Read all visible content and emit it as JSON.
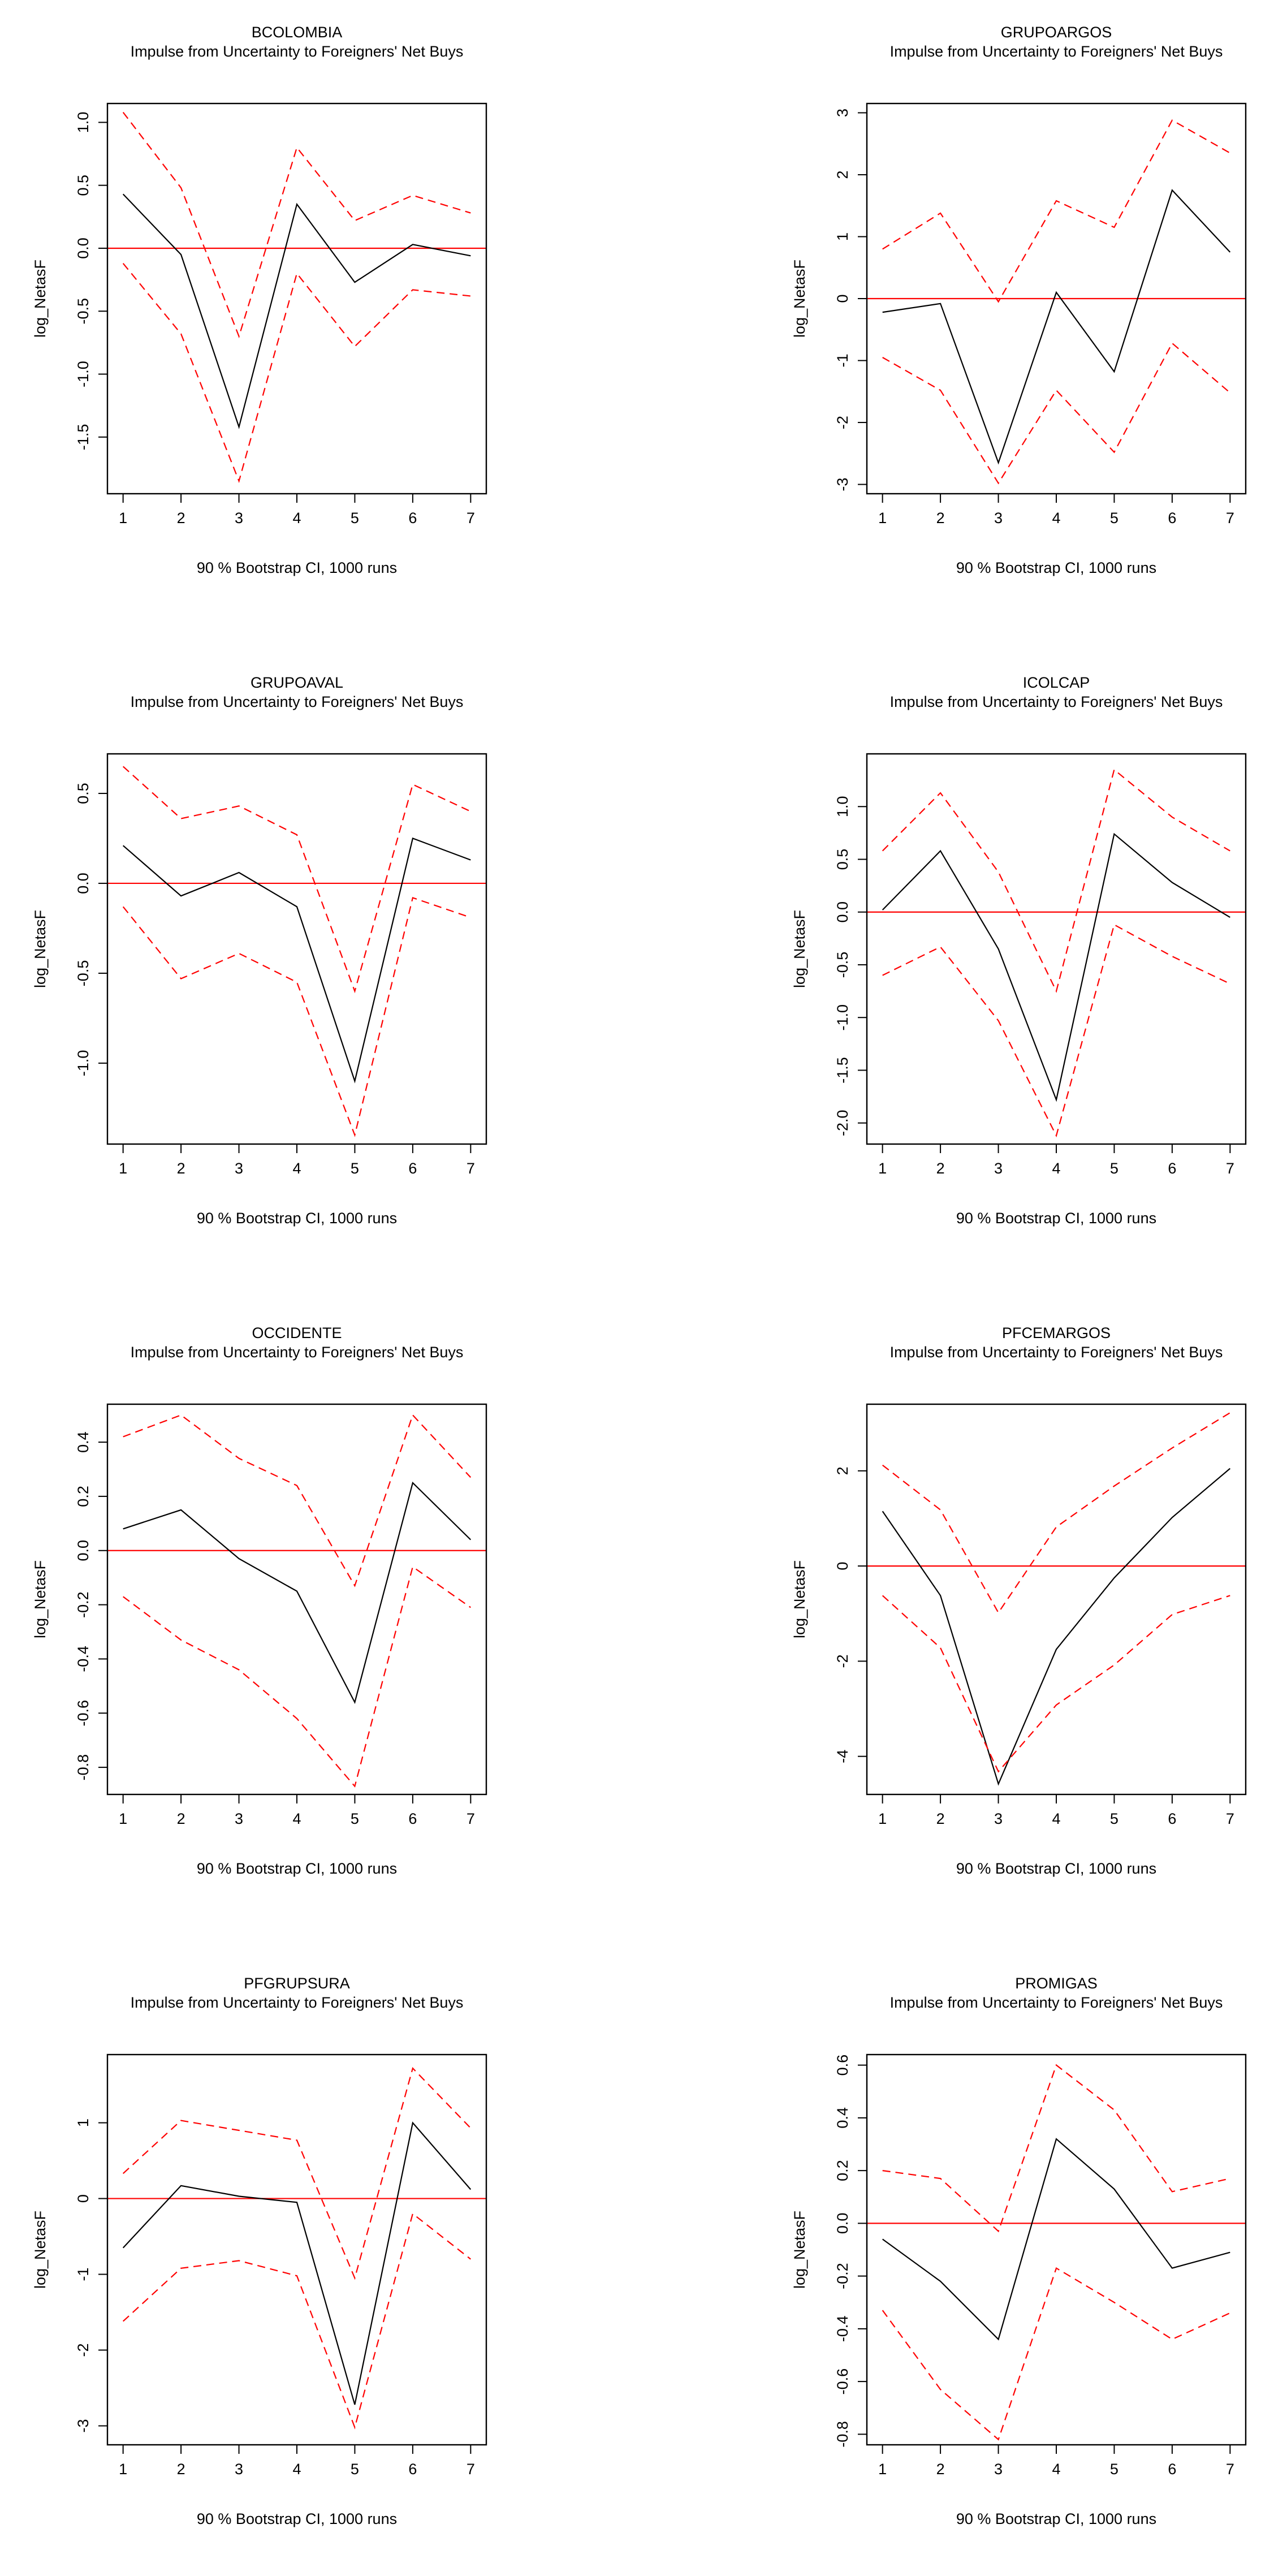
{
  "chart_data": [
    {
      "type": "line",
      "title": "BCOLOMBIA",
      "subtitle": "Impulse from Uncertainty to Foreigners' Net Buys",
      "xlabel": "90 % Bootstrap CI,  1000 runs",
      "ylabel": "log_NetasF",
      "x": [
        1,
        2,
        3,
        4,
        5,
        6,
        7
      ],
      "xticks": [
        "1",
        "2",
        "3",
        "4",
        "5",
        "6",
        "7"
      ],
      "ylim": [
        -1.95,
        1.15
      ],
      "yticks": [
        -1.5,
        -1.0,
        -0.5,
        0.0,
        0.5,
        1.0
      ],
      "yticklabels": [
        "-1.5",
        "-1.0",
        "-0.5",
        "0.0",
        "0.5",
        "1.0"
      ],
      "series": [
        {
          "name": "irf",
          "values": [
            0.43,
            -0.05,
            -1.42,
            0.35,
            -0.27,
            0.03,
            -0.06
          ]
        },
        {
          "name": "upper",
          "values": [
            1.08,
            0.48,
            -0.7,
            0.8,
            0.22,
            0.42,
            0.28
          ]
        },
        {
          "name": "lower",
          "values": [
            -0.12,
            -0.68,
            -1.85,
            -0.2,
            -0.78,
            -0.33,
            -0.38
          ]
        }
      ]
    },
    {
      "type": "line",
      "title": "GRUPOARGOS",
      "subtitle": "Impulse from Uncertainty to Foreigners' Net Buys",
      "xlabel": "90 % Bootstrap CI,  1000 runs",
      "ylabel": "log_NetasF",
      "x": [
        1,
        2,
        3,
        4,
        5,
        6,
        7
      ],
      "xticks": [
        "1",
        "2",
        "3",
        "4",
        "5",
        "6",
        "7"
      ],
      "ylim": [
        -3.15,
        3.15
      ],
      "yticks": [
        -3,
        -2,
        -1,
        0,
        1,
        2,
        3
      ],
      "yticklabels": [
        "-3",
        "-2",
        "-1",
        "0",
        "1",
        "2",
        "3"
      ],
      "series": [
        {
          "name": "irf",
          "values": [
            -0.22,
            -0.08,
            -2.65,
            0.1,
            -1.18,
            1.75,
            0.75
          ]
        },
        {
          "name": "upper",
          "values": [
            0.8,
            1.38,
            -0.05,
            1.58,
            1.15,
            2.88,
            2.35
          ]
        },
        {
          "name": "lower",
          "values": [
            -0.95,
            -1.48,
            -2.98,
            -1.48,
            -2.48,
            -0.72,
            -1.52
          ]
        }
      ]
    },
    {
      "type": "line",
      "title": "GRUPOAVAL",
      "subtitle": "Impulse from Uncertainty to Foreigners' Net Buys",
      "xlabel": "90 % Bootstrap CI,  1000 runs",
      "ylabel": "log_NetasF",
      "x": [
        1,
        2,
        3,
        4,
        5,
        6,
        7
      ],
      "xticks": [
        "1",
        "2",
        "3",
        "4",
        "5",
        "6",
        "7"
      ],
      "ylim": [
        -1.45,
        0.72
      ],
      "yticks": [
        -1.0,
        -0.5,
        0.0,
        0.5
      ],
      "yticklabels": [
        "-1.0",
        "-0.5",
        "0.0",
        "0.5"
      ],
      "series": [
        {
          "name": "irf",
          "values": [
            0.21,
            -0.07,
            0.06,
            -0.13,
            -1.1,
            0.25,
            0.13
          ]
        },
        {
          "name": "upper",
          "values": [
            0.65,
            0.36,
            0.43,
            0.27,
            -0.6,
            0.55,
            0.4
          ]
        },
        {
          "name": "lower",
          "values": [
            -0.13,
            -0.53,
            -0.39,
            -0.55,
            -1.4,
            -0.08,
            -0.19
          ]
        }
      ]
    },
    {
      "type": "line",
      "title": "ICOLCAP",
      "subtitle": "Impulse from Uncertainty to Foreigners' Net Buys",
      "xlabel": "90 % Bootstrap CI,  1000 runs",
      "ylabel": "log_NetasF",
      "x": [
        1,
        2,
        3,
        4,
        5,
        6,
        7
      ],
      "xticks": [
        "1",
        "2",
        "3",
        "4",
        "5",
        "6",
        "7"
      ],
      "ylim": [
        -2.2,
        1.5
      ],
      "yticks": [
        -2.0,
        -1.5,
        -1.0,
        -0.5,
        0.0,
        0.5,
        1.0
      ],
      "yticklabels": [
        "-2.0",
        "-1.5",
        "-1.0",
        "-0.5",
        "0.0",
        "0.5",
        "1.0"
      ],
      "series": [
        {
          "name": "irf",
          "values": [
            0.02,
            0.58,
            -0.35,
            -1.78,
            0.74,
            0.28,
            -0.05
          ]
        },
        {
          "name": "upper",
          "values": [
            0.58,
            1.13,
            0.38,
            -0.75,
            1.35,
            0.9,
            0.58
          ]
        },
        {
          "name": "lower",
          "values": [
            -0.6,
            -0.33,
            -1.03,
            -2.12,
            -0.12,
            -0.42,
            -0.68
          ]
        }
      ]
    },
    {
      "type": "line",
      "title": "OCCIDENTE",
      "subtitle": "Impulse from Uncertainty to Foreigners' Net Buys",
      "xlabel": "90 % Bootstrap CI,  1000 runs",
      "ylabel": "log_NetasF",
      "x": [
        1,
        2,
        3,
        4,
        5,
        6,
        7
      ],
      "xticks": [
        "1",
        "2",
        "3",
        "4",
        "5",
        "6",
        "7"
      ],
      "ylim": [
        -0.9,
        0.54
      ],
      "yticks": [
        -0.8,
        -0.6,
        -0.4,
        -0.2,
        0.0,
        0.2,
        0.4
      ],
      "yticklabels": [
        "-0.8",
        "-0.6",
        "-0.4",
        "-0.2",
        "0.0",
        "0.2",
        "0.4"
      ],
      "series": [
        {
          "name": "irf",
          "values": [
            0.08,
            0.15,
            -0.03,
            -0.15,
            -0.56,
            0.25,
            0.04
          ]
        },
        {
          "name": "upper",
          "values": [
            0.42,
            0.5,
            0.34,
            0.24,
            -0.13,
            0.5,
            0.27
          ]
        },
        {
          "name": "lower",
          "values": [
            -0.17,
            -0.33,
            -0.44,
            -0.62,
            -0.87,
            -0.06,
            -0.21
          ]
        }
      ]
    },
    {
      "type": "line",
      "title": "PFCEMARGOS",
      "subtitle": "Impulse from Uncertainty to Foreigners' Net Buys",
      "xlabel": "90 % Bootstrap CI,  1000 runs",
      "ylabel": "log_NetasF",
      "x": [
        1,
        2,
        3,
        4,
        5,
        6,
        7
      ],
      "xticks": [
        "1",
        "2",
        "3",
        "4",
        "5",
        "6",
        "7"
      ],
      "ylim": [
        -4.8,
        3.4
      ],
      "yticks": [
        -4,
        -2,
        0,
        2
      ],
      "yticklabels": [
        "-4",
        "-2",
        "0",
        "2"
      ],
      "series": [
        {
          "name": "irf",
          "values": [
            1.15,
            -0.62,
            -4.58,
            -1.75,
            -0.25,
            1.02,
            2.05
          ]
        },
        {
          "name": "upper",
          "values": [
            2.12,
            1.18,
            -0.98,
            0.82,
            1.68,
            2.48,
            3.22
          ]
        },
        {
          "name": "lower",
          "values": [
            -0.62,
            -1.72,
            -4.32,
            -2.92,
            -2.08,
            -1.02,
            -0.62
          ]
        }
      ]
    },
    {
      "type": "line",
      "title": "PFGRUPSURA",
      "subtitle": "Impulse from Uncertainty to Foreigners' Net Buys",
      "xlabel": "90 % Bootstrap CI,  1000 runs",
      "ylabel": "log_NetasF",
      "x": [
        1,
        2,
        3,
        4,
        5,
        6,
        7
      ],
      "xticks": [
        "1",
        "2",
        "3",
        "4",
        "5",
        "6",
        "7"
      ],
      "ylim": [
        -3.25,
        1.9
      ],
      "yticks": [
        -3,
        -2,
        -1,
        0,
        1
      ],
      "yticklabels": [
        "-3",
        "-2",
        "-1",
        "0",
        "1"
      ],
      "series": [
        {
          "name": "irf",
          "values": [
            -0.65,
            0.17,
            0.03,
            -0.05,
            -2.72,
            1.0,
            0.12
          ]
        },
        {
          "name": "upper",
          "values": [
            0.33,
            1.03,
            0.9,
            0.77,
            -1.05,
            1.72,
            0.93
          ]
        },
        {
          "name": "lower",
          "values": [
            -1.62,
            -0.92,
            -0.82,
            -1.02,
            -3.02,
            -0.2,
            -0.8
          ]
        }
      ]
    },
    {
      "type": "line",
      "title": "PROMIGAS",
      "subtitle": "Impulse from Uncertainty to Foreigners' Net Buys",
      "xlabel": "90 % Bootstrap CI,  1000 runs",
      "ylabel": "log_NetasF",
      "x": [
        1,
        2,
        3,
        4,
        5,
        6,
        7
      ],
      "xticks": [
        "1",
        "2",
        "3",
        "4",
        "5",
        "6",
        "7"
      ],
      "ylim": [
        -0.84,
        0.64
      ],
      "yticks": [
        -0.8,
        -0.6,
        -0.4,
        -0.2,
        0.0,
        0.2,
        0.4,
        0.6
      ],
      "yticklabels": [
        "-0.8",
        "-0.6",
        "-0.4",
        "-0.2",
        "0.0",
        "0.2",
        "0.4",
        "0.6"
      ],
      "series": [
        {
          "name": "irf",
          "values": [
            -0.06,
            -0.22,
            -0.44,
            0.32,
            0.13,
            -0.17,
            -0.11
          ]
        },
        {
          "name": "upper",
          "values": [
            0.2,
            0.17,
            -0.03,
            0.6,
            0.43,
            0.12,
            0.17
          ]
        },
        {
          "name": "lower",
          "values": [
            -0.33,
            -0.63,
            -0.82,
            -0.17,
            -0.3,
            -0.44,
            -0.34
          ]
        }
      ]
    }
  ],
  "colors": {
    "irf": "#000000",
    "ci": "#ff0000",
    "zero_line": "#ff0000",
    "frame": "#000000"
  }
}
